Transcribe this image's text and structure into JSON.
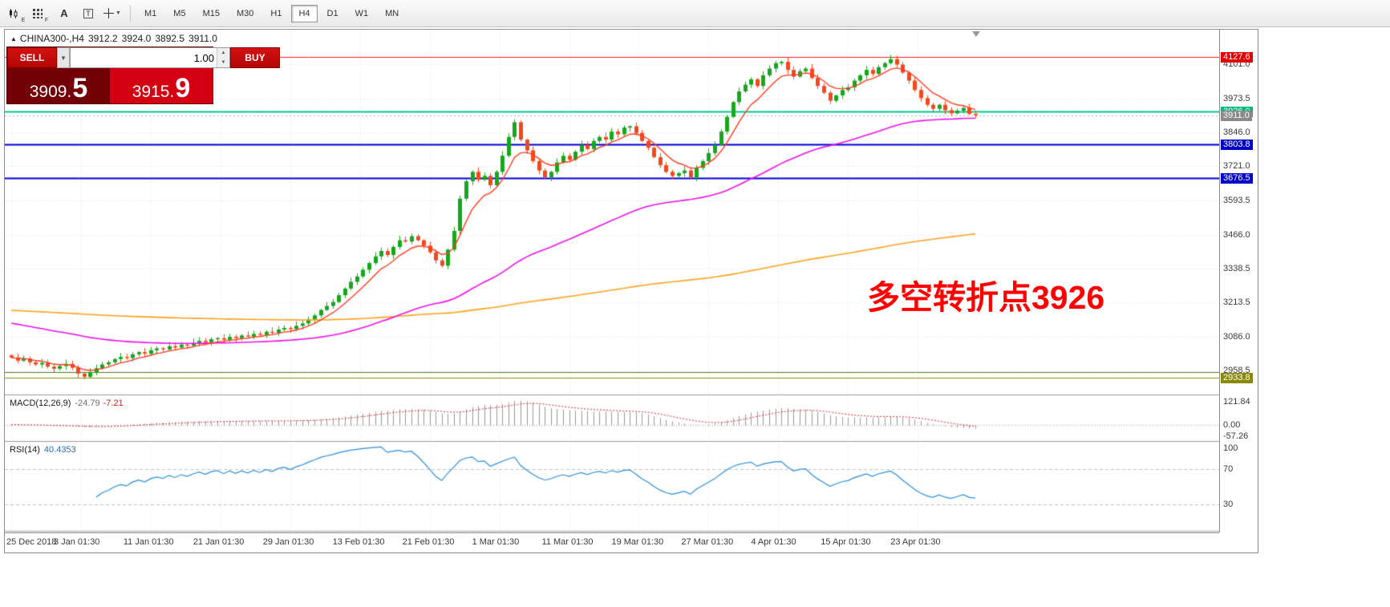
{
  "toolbar": {
    "icons": [
      "candlestick-chart-icon",
      "indicators-grid-icon",
      "text-label-icon",
      "text-box-icon",
      "crosshair-tool-icon"
    ],
    "timeframes": [
      "M1",
      "M5",
      "M15",
      "M30",
      "H1",
      "H4",
      "D1",
      "W1",
      "MN"
    ],
    "active_timeframe": "H4"
  },
  "chart": {
    "header": {
      "symbol": "CHINA300-,H4",
      "open": "3912.2",
      "high": "3924.0",
      "low": "3892.5",
      "close": "3911.0"
    },
    "annotation": {
      "text": "多空转折点3926",
      "color": "#ff0000"
    }
  },
  "trade_panel": {
    "sell_label": "SELL",
    "buy_label": "BUY",
    "volume": "1.00",
    "sell_price": "3909.5",
    "buy_price": "3915.9",
    "sell_price_main": "3909.",
    "sell_price_big": "5",
    "buy_price_main": "3915.",
    "buy_price_big": "9"
  },
  "chart_data": {
    "type": "candlestick",
    "symbol": "CHINA300-",
    "timeframe": "H4",
    "price_range": [
      2870,
      4230
    ],
    "price_axis_ticks": [
      "4101.0",
      "3973.5",
      "3846.0",
      "3721.0",
      "3593.5",
      "3466.0",
      "3338.5",
      "3213.5",
      "3086.0",
      "2958.5"
    ],
    "x_labels": [
      "25 Dec 2018",
      "3 Jan 01:30",
      "11 Jan 01:30",
      "21 Jan 01:30",
      "29 Jan 01:30",
      "13 Feb 01:30",
      "21 Feb 01:30",
      "1 Mar 01:30",
      "11 Mar 01:30",
      "19 Mar 01:30",
      "27 Mar 01:30",
      "4 Apr 01:30",
      "15 Apr 01:30",
      "23 Apr 01:30"
    ],
    "candles_per_label": 11.5,
    "closes": [
      3008,
      2996,
      3004,
      2990,
      2982,
      2988,
      2974,
      2966,
      2976,
      2984,
      2970,
      2948,
      2936,
      2952,
      2968,
      2982,
      2990,
      3002,
      3010,
      3006,
      3020,
      3028,
      3022,
      3035,
      3042,
      3038,
      3050,
      3045,
      3056,
      3052,
      3062,
      3070,
      3065,
      3076,
      3080,
      3074,
      3085,
      3080,
      3090,
      3086,
      3096,
      3092,
      3104,
      3100,
      3112,
      3118,
      3114,
      3126,
      3135,
      3150,
      3165,
      3185,
      3200,
      3215,
      3240,
      3265,
      3290,
      3310,
      3335,
      3360,
      3385,
      3405,
      3390,
      3420,
      3445,
      3440,
      3460,
      3445,
      3425,
      3400,
      3370,
      3350,
      3410,
      3480,
      3600,
      3665,
      3700,
      3670,
      3685,
      3650,
      3700,
      3760,
      3830,
      3885,
      3820,
      3780,
      3740,
      3705,
      3680,
      3700,
      3735,
      3760,
      3745,
      3775,
      3800,
      3785,
      3815,
      3830,
      3820,
      3850,
      3840,
      3865,
      3870,
      3845,
      3815,
      3790,
      3755,
      3725,
      3700,
      3685,
      3695,
      3705,
      3680,
      3715,
      3740,
      3770,
      3800,
      3850,
      3905,
      3960,
      4000,
      4025,
      4045,
      4020,
      4060,
      4085,
      4105,
      4110,
      4080,
      4055,
      4075,
      4085,
      4050,
      4020,
      3995,
      3965,
      3985,
      4005,
      4015,
      4040,
      4060,
      4080,
      4065,
      4090,
      4105,
      4120,
      4100,
      4070,
      4040,
      4005,
      3975,
      3950,
      3935,
      3950,
      3930,
      3918,
      3928,
      3938,
      3916,
      3911
    ],
    "colors": {
      "up": "#17a61e",
      "down": "#ef4a1f",
      "ma_fast": "#ff3b1f",
      "ma_mid": "#ee11ee",
      "ma_slow": "#ffa21f",
      "grid": "#e6e6e6"
    },
    "hlines": [
      {
        "price": 4127.6,
        "label": "4127.6",
        "color": "#ff1a1a",
        "label_bg": "#e00000",
        "style": "solid",
        "width": 1
      },
      {
        "price": 3926.0,
        "label": "3926.0",
        "color": "#00c98d",
        "label_bg": "#00b87d",
        "style": "solid",
        "width": 2
      },
      {
        "price": 3911.0,
        "label": "3911.0",
        "color": "#b0b0b0",
        "label_bg": "#8a8a8a",
        "style": "dotted",
        "width": 1
      },
      {
        "price": 3803.8,
        "label": "3803.8",
        "color": "#0000d6",
        "label_bg": "#0000c8",
        "style": "solid",
        "width": 2
      },
      {
        "price": 3676.5,
        "label": "3676.5",
        "color": "#0000d6",
        "label_bg": "#0000c8",
        "style": "solid",
        "width": 2
      },
      {
        "price": 2955.0,
        "label": "",
        "color": "#4e7d1e",
        "label_bg": "",
        "style": "solid",
        "width": 1
      },
      {
        "price": 2933.8,
        "label": "2933.8",
        "color": "#8a8a00",
        "label_bg": "#8a8a00",
        "style": "solid",
        "width": 1
      }
    ],
    "indicators": {
      "macd": {
        "name": "MACD(12,26,9)",
        "main_value": "-24.79",
        "signal_value": "-7.21",
        "axis_labels": [
          "121.84",
          "0.00",
          "-57.26"
        ],
        "range": [
          -80,
          140
        ]
      },
      "rsi": {
        "name": "RSI(14)",
        "value": "40.4353",
        "axis_labels": [
          "100",
          "70",
          "30"
        ],
        "levels": [
          70,
          30
        ],
        "range": [
          0,
          100
        ]
      }
    }
  }
}
